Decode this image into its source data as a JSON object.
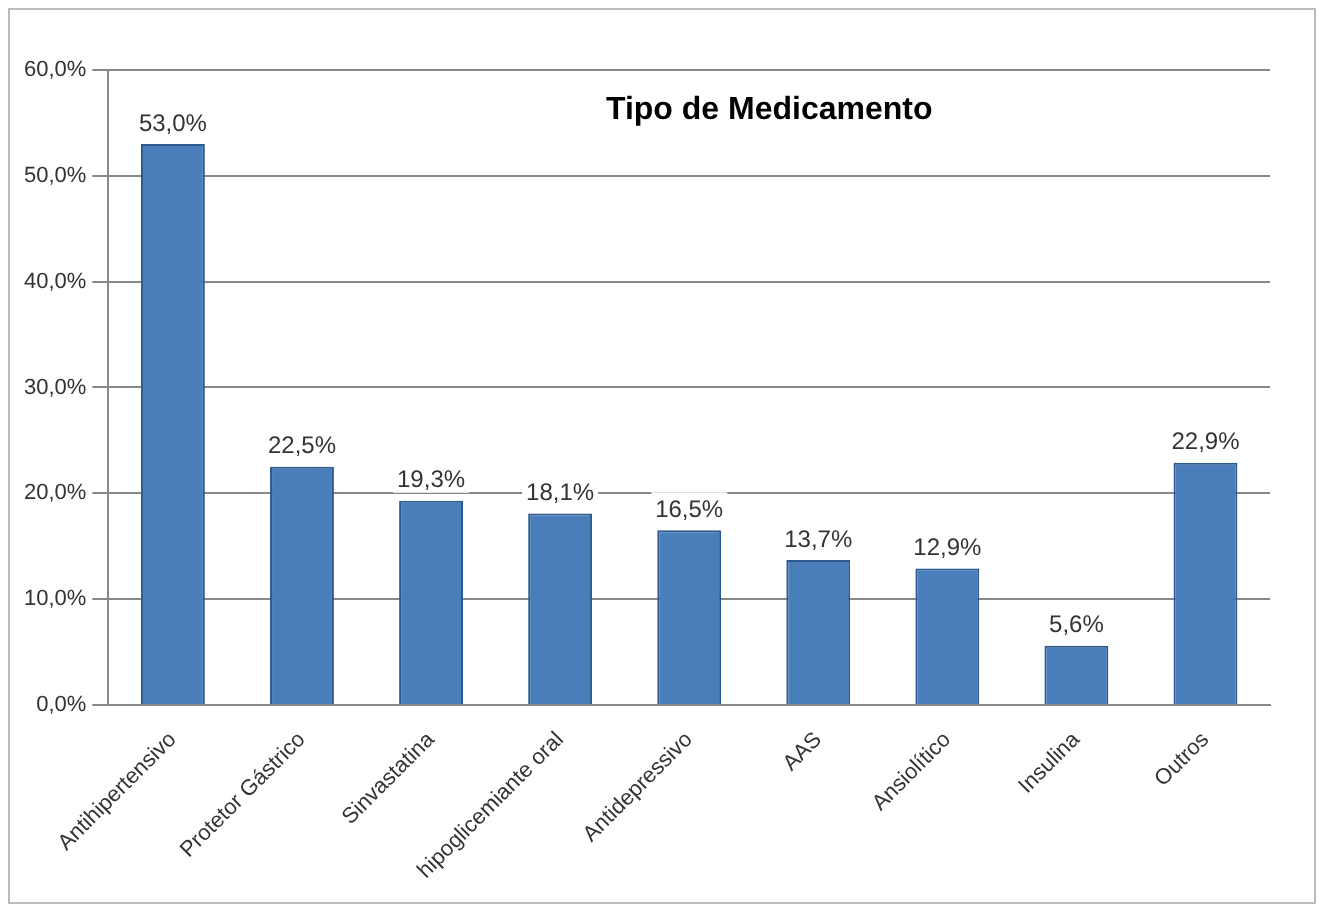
{
  "chart_data": {
    "type": "bar",
    "title": "Tipo de Medicamento",
    "categories": [
      "Antihipertensivo",
      "Protetor Gástrico",
      "Sinvastatina",
      "hipoglicemiante oral",
      "Antidepressivo",
      "AAS",
      "Ansiolítico",
      "Insulina",
      "Outros"
    ],
    "values": [
      53.0,
      22.5,
      19.3,
      18.1,
      16.5,
      13.7,
      12.9,
      5.6,
      22.9
    ],
    "value_labels": [
      "53,0%",
      "22,5%",
      "19,3%",
      "18,1%",
      "16,5%",
      "13,7%",
      "12,9%",
      "5,6%",
      "22,9%"
    ],
    "color": "#4a7ebb",
    "ylim": [
      0,
      60
    ],
    "yticks": [
      {
        "value": 0,
        "label": "0,0%"
      },
      {
        "value": 10,
        "label": "10,0%"
      },
      {
        "value": 20,
        "label": "20,0%"
      },
      {
        "value": 30,
        "label": "30,0%"
      },
      {
        "value": 40,
        "label": "40,0%"
      },
      {
        "value": 50,
        "label": "50,0%"
      },
      {
        "value": 60,
        "label": "60,0%"
      }
    ],
    "grid": "y",
    "legend": false
  }
}
